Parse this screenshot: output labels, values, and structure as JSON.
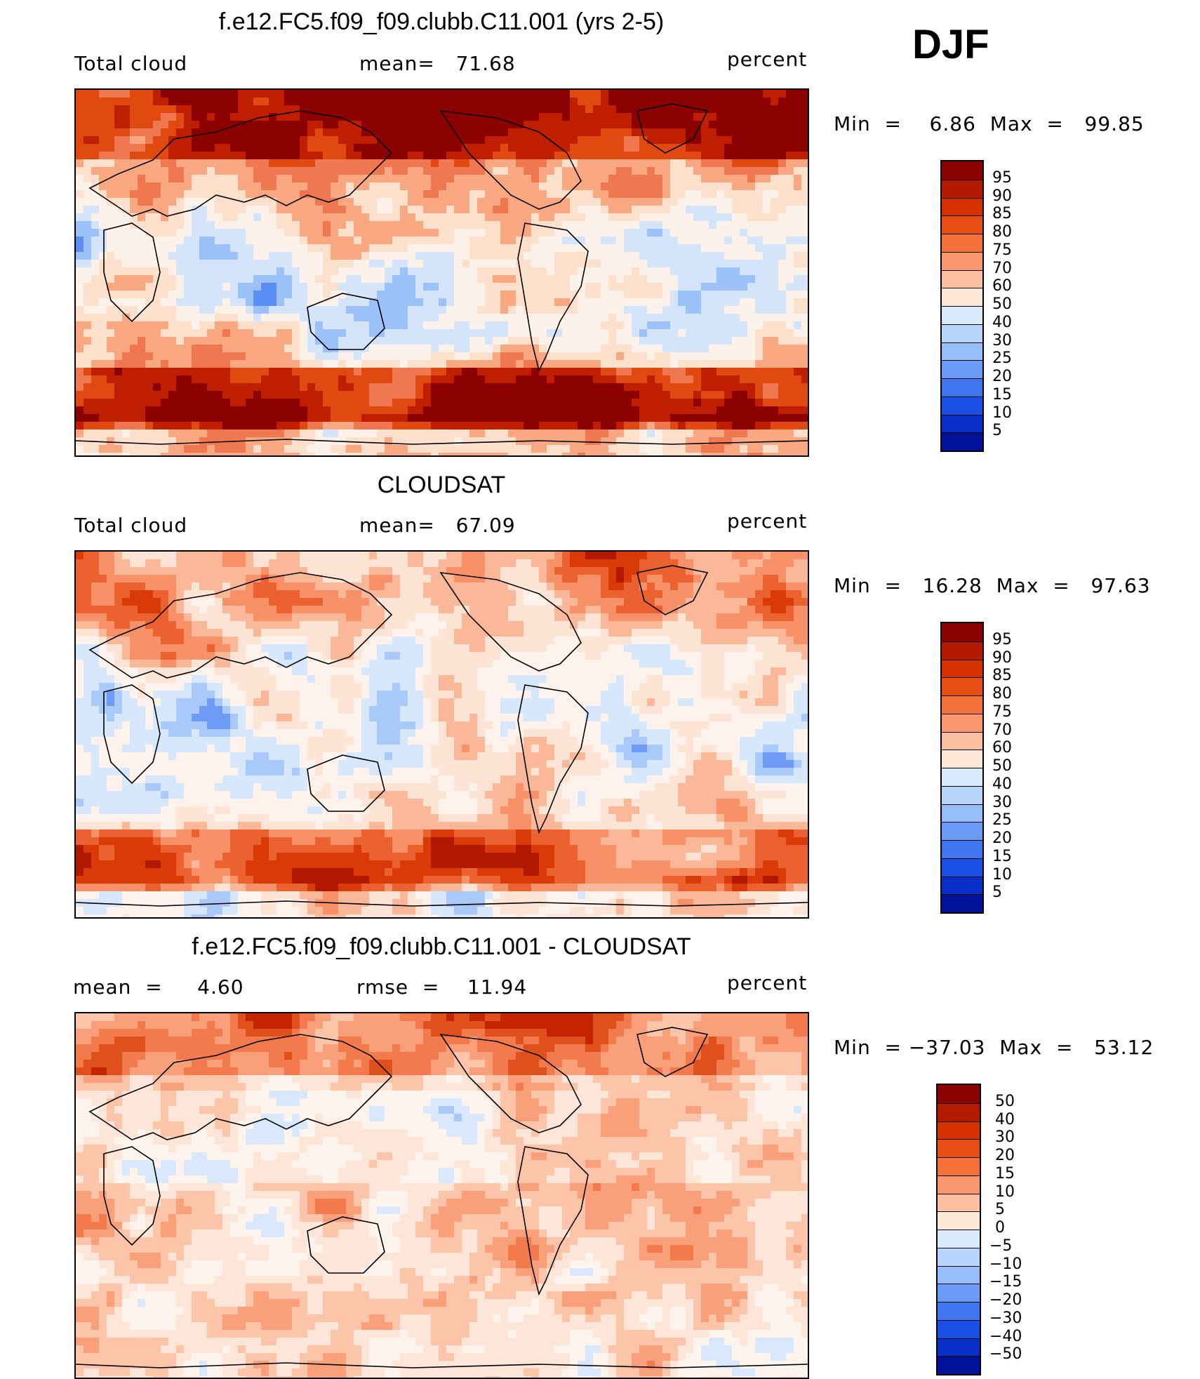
{
  "season": "DJF",
  "panels": [
    {
      "id": "model",
      "title": "f.e12.FC5.f09_f09.clubb.C11.001 (yrs 2-5)",
      "left_label": "Total cloud",
      "center_label": "mean=   71.68",
      "right_label": "percent",
      "minmax": "Min  =    6.86  Max  =   99.85",
      "colorbar": {
        "labels": [
          "95",
          "90",
          "85",
          "80",
          "75",
          "70",
          "60",
          "50",
          "40",
          "30",
          "25",
          "20",
          "15",
          "10",
          "5"
        ],
        "colors": [
          "#8b0000",
          "#b31a00",
          "#d62f00",
          "#e84d14",
          "#f5713a",
          "#f9966b",
          "#fcbfa0",
          "#fde8d8",
          "#d9eafc",
          "#b8d5fb",
          "#95befa",
          "#6a9cf7",
          "#3f76f0",
          "#1a4fe6",
          "#0a2fc8",
          "#00129a"
        ]
      },
      "map_palette": [
        "#8b0000",
        "#c01e00",
        "#e04a10",
        "#f07850",
        "#f9a882",
        "#fde0cc",
        "#fdf2ea",
        "#d4e4fb",
        "#9cc0f8",
        "#5a8ef3",
        "#1f55e0"
      ]
    },
    {
      "id": "obs",
      "title": "CLOUDSAT",
      "left_label": "Total cloud",
      "center_label": "mean=   67.09",
      "right_label": "percent",
      "minmax": "Min  =   16.28  Max  =   97.63",
      "colorbar": {
        "labels": [
          "95",
          "90",
          "85",
          "80",
          "75",
          "70",
          "60",
          "50",
          "40",
          "30",
          "25",
          "20",
          "15",
          "10",
          "5"
        ],
        "colors": [
          "#8b0000",
          "#b31a00",
          "#d62f00",
          "#e84d14",
          "#f5713a",
          "#f9966b",
          "#fcbfa0",
          "#fde8d8",
          "#d9eafc",
          "#b8d5fb",
          "#95befa",
          "#6a9cf7",
          "#3f76f0",
          "#1a4fe6",
          "#0a2fc8",
          "#00129a"
        ]
      },
      "map_palette": [
        "#b01800",
        "#d93a08",
        "#ec6130",
        "#f89068",
        "#fbb898",
        "#fde4d4",
        "#fdf3ec",
        "#d7e7fc",
        "#a8c9f9",
        "#6d9bf5",
        "#3268ec"
      ]
    },
    {
      "id": "diff",
      "title": "f.e12.FC5.f09_f09.clubb.C11.001 - CLOUDSAT",
      "left_label": "mean  =     4.60",
      "center_label": "rmse  =    11.94",
      "right_label": "percent",
      "minmax": "Min  = −37.03  Max  =   53.12",
      "colorbar": {
        "labels": [
          "50",
          "40",
          "30",
          "20",
          "15",
          "10",
          "5",
          "0",
          "−5",
          "−10",
          "−15",
          "−20",
          "−30",
          "−40",
          "−50"
        ],
        "colors": [
          "#8b0000",
          "#b31a00",
          "#d62f00",
          "#e84d14",
          "#f5713a",
          "#f9966b",
          "#fcbfa0",
          "#fde8d8",
          "#d9eafc",
          "#b8d5fb",
          "#95befa",
          "#6a9cf7",
          "#3f76f0",
          "#1a4fe6",
          "#0a2fc8",
          "#00129a"
        ]
      },
      "map_palette": [
        "#c42400",
        "#e0501c",
        "#f27a4c",
        "#f9a07a",
        "#fcc4a8",
        "#fde6d8",
        "#fdf4ee",
        "#d9e8fc",
        "#a9c9f9",
        "#6f9df5",
        "#3a6eea"
      ]
    }
  ]
}
